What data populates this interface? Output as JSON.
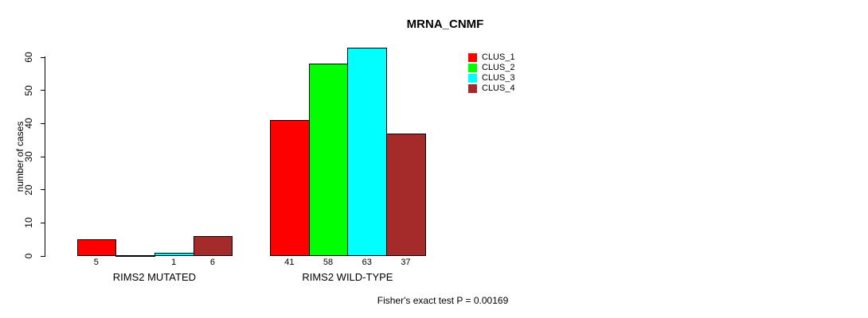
{
  "chart_data": {
    "type": "bar",
    "title": "MRNA_CNMF",
    "ylabel": "number of cases",
    "xlabel": "",
    "ylim": [
      0,
      60
    ],
    "yticks": [
      0,
      10,
      20,
      30,
      40,
      50,
      60
    ],
    "grid": false,
    "legend_position": "top-right-outside",
    "categories": [
      "RIMS2 MUTATED",
      "RIMS2 WILD-TYPE"
    ],
    "series": [
      {
        "name": "CLUS_1",
        "color": "#FF0000",
        "values": [
          5,
          41
        ]
      },
      {
        "name": "CLUS_2",
        "color": "#00FF00",
        "values": [
          0,
          58
        ]
      },
      {
        "name": "CLUS_3",
        "color": "#00FFFF",
        "values": [
          1,
          63
        ]
      },
      {
        "name": "CLUS_4",
        "color": "#A52A2A",
        "values": [
          6,
          37
        ]
      }
    ],
    "bar_value_labels": [
      [
        "5",
        "",
        "1",
        "6"
      ],
      [
        "41",
        "58",
        "63",
        "37"
      ]
    ],
    "annotation": "Fisher's exact test P = 0.00169",
    "axis_color": "#000000",
    "background_color": "#FFFFFF"
  }
}
